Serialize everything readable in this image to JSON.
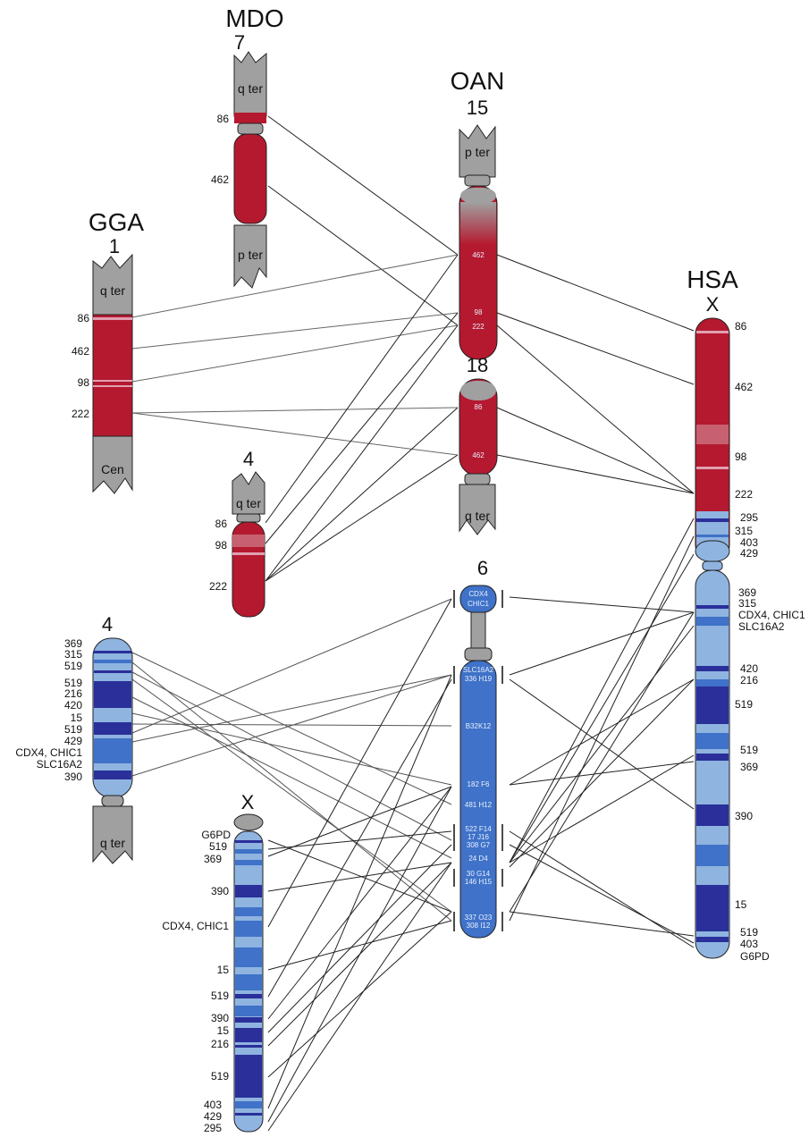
{
  "mdo": {
    "species": "MDO",
    "chrom": "7",
    "q_ter": "q ter",
    "p_ter": "p ter",
    "markers": [
      "86",
      "462"
    ]
  },
  "gga": {
    "species": "GGA",
    "chrom": "1",
    "q_ter": "q ter",
    "cen": "Cen",
    "markers": [
      "86",
      "462",
      "98",
      "222"
    ]
  },
  "mdo4": {
    "chrom": "4",
    "q_ter": "q ter",
    "markers": [
      "86",
      "98",
      "222"
    ]
  },
  "oan": {
    "species": "OAN",
    "chrom15": "15",
    "chrom18": "18",
    "chrom6": "6",
    "p_ter": "p ter",
    "q_ter": "q ter",
    "c15_labels": [
      "462",
      "98",
      "222"
    ],
    "c18_labels": [
      "86",
      "462"
    ],
    "c6_labels": [
      "CDX4",
      "CHIC1",
      "SLC16A2",
      "336 H19",
      "B32K12",
      "182 F6",
      "481 H12",
      "522 F14",
      "17 J16",
      "308 G7",
      "24 D4",
      "30 G14",
      "146 H15",
      "337 O23",
      "308 I12"
    ]
  },
  "hsa": {
    "species": "HSA",
    "chrom": "X",
    "markers": [
      "86",
      "462",
      "98",
      "222",
      "295",
      "315",
      "403",
      "429",
      "369",
      "315",
      "CDX4, CHIC1",
      "SLC16A2",
      "420",
      "216",
      "519",
      "519",
      "369",
      "390",
      "15",
      "519",
      "403",
      "G6PD"
    ]
  },
  "gga4": {
    "chrom": "4",
    "q_ter": "q ter",
    "markers": [
      "369",
      "315",
      "519",
      "519",
      "216",
      "420",
      "15",
      "519",
      "429",
      "CDX4, CHIC1",
      "SLC16A2",
      "390"
    ]
  },
  "mdox": {
    "chrom": "X",
    "markers": [
      "G6PD",
      "519",
      "369",
      "390",
      "CDX4, CHIC1",
      "15",
      "519",
      "390",
      "15",
      "216",
      "519",
      "403",
      "429",
      "295"
    ]
  },
  "colors": {
    "red": "#b5192f",
    "gray": "#a0a0a0",
    "blue_light": "#8fb4e0",
    "blue_mid": "#3f72c8",
    "blue_dark": "#2a2f9a"
  }
}
